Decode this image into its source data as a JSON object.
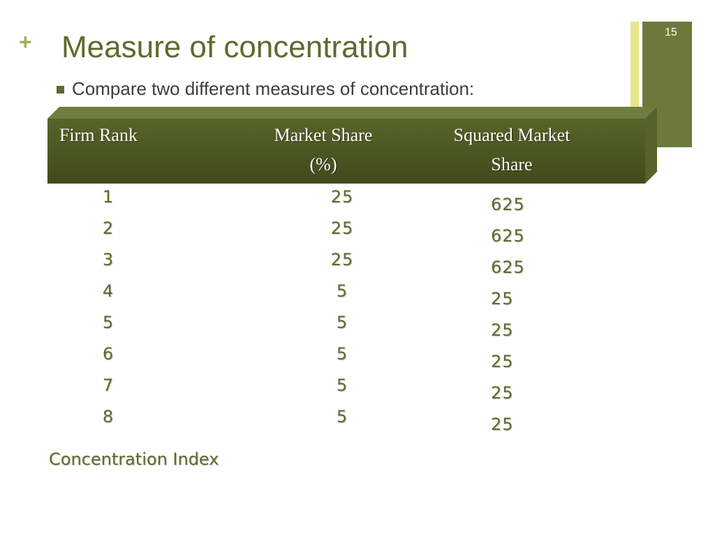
{
  "slide": {
    "number": "15",
    "title": "Measure of concentration",
    "bullet": "Compare two different measures of concentration:"
  },
  "table": {
    "headers": {
      "rank": "Firm Rank",
      "share_line1": "Market Share",
      "share_line2": "(%)",
      "squared_line1": "Squared Market",
      "squared_line2": "Share"
    },
    "rows": [
      {
        "rank": "1",
        "share": "25",
        "squared": "625"
      },
      {
        "rank": "2",
        "share": "25",
        "squared": "625"
      },
      {
        "rank": "3",
        "share": "25",
        "squared": "625"
      },
      {
        "rank": "4",
        "share": "5",
        "squared": "25"
      },
      {
        "rank": "5",
        "share": "5",
        "squared": "25"
      },
      {
        "rank": "6",
        "share": "5",
        "squared": "25"
      },
      {
        "rank": "7",
        "share": "5",
        "squared": "25"
      },
      {
        "rank": "8",
        "share": "5",
        "squared": "25"
      }
    ],
    "footer": "Concentration Index"
  },
  "colors": {
    "accent_green": "#5c6b2d",
    "band_green": "#4e5c22",
    "deco_yellow": "#e9e68a",
    "plus": "#a3ad62"
  }
}
